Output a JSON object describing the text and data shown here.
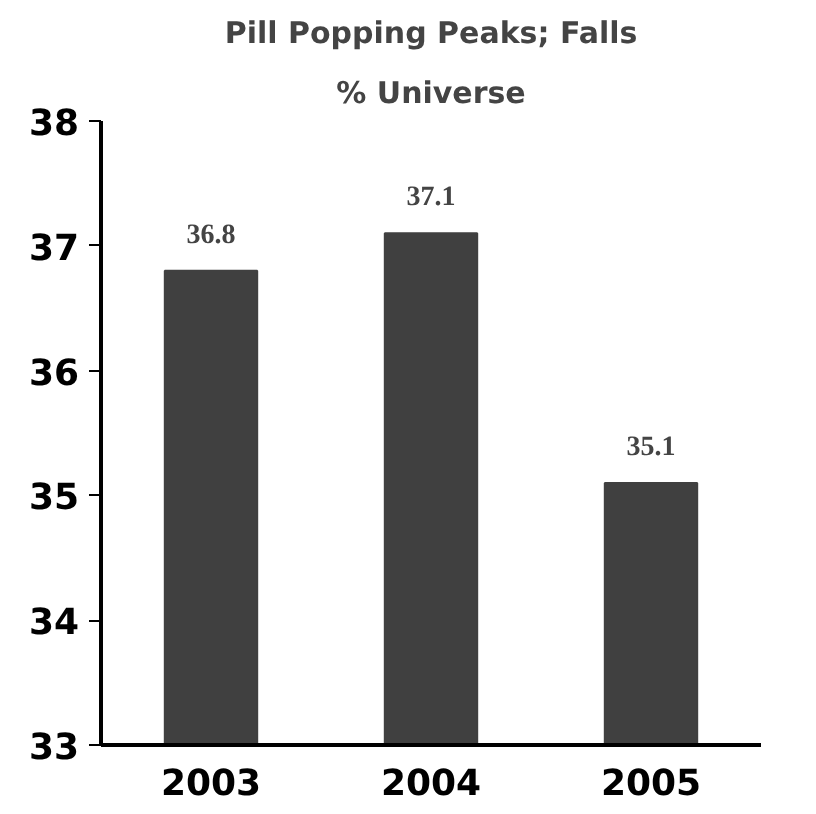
{
  "chart_data": {
    "type": "bar",
    "title": "Pill Popping Peaks; Falls",
    "subtitle": "% Universe",
    "categories": [
      "2003",
      "2004",
      "2005"
    ],
    "values": [
      36.8,
      37.1,
      35.1
    ],
    "color": "#404040",
    "ylim": [
      33,
      38
    ],
    "yticks": [
      33,
      34,
      35,
      36,
      37,
      38
    ],
    "grid": false,
    "data_labels": true
  }
}
